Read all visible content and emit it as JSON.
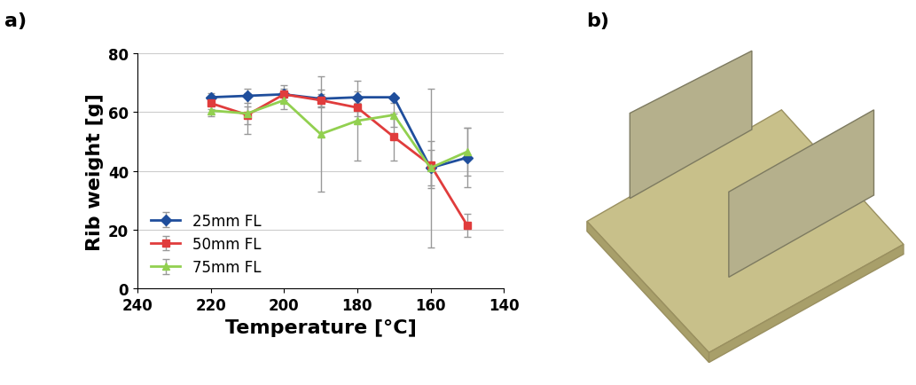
{
  "panel_labels": [
    "a)",
    "b)"
  ],
  "chart_data": {
    "type": "line",
    "x_label": "Temperature [°C]",
    "y_label": "Rib weight [g]",
    "x": [
      220,
      210,
      200,
      190,
      180,
      170,
      160,
      150
    ],
    "xlim": [
      240,
      140
    ],
    "xticks": [
      240,
      220,
      200,
      180,
      160,
      140
    ],
    "ylim": [
      0,
      80
    ],
    "yticks": [
      0,
      20,
      40,
      60,
      80
    ],
    "grid": true,
    "legend": "lower left",
    "series": [
      {
        "name": "25mm FL",
        "color": "#1f4e9c",
        "marker": "diamond",
        "line_style": "solid",
        "values": [
          65,
          65.5,
          66,
          64.5,
          65,
          65,
          41,
          44.5
        ],
        "error": [
          1.5,
          2.5,
          2,
          3,
          2,
          0.5,
          6,
          10
        ]
      },
      {
        "name": "50mm FL",
        "color": "#e03c3c",
        "marker": "square",
        "line_style": "solid",
        "values": [
          63,
          59,
          66,
          64,
          61.5,
          51.5,
          42,
          21.5
        ],
        "error": [
          2,
          3,
          3,
          2,
          3,
          8,
          8,
          4
        ]
      },
      {
        "name": "75mm FL",
        "color": "#92d050",
        "marker": "triangle",
        "line_style": "solid",
        "values": [
          60.5,
          59.5,
          64,
          52.5,
          57,
          59,
          41,
          46.5
        ],
        "error": [
          2,
          7,
          3,
          19.5,
          13.5,
          4,
          27,
          8
        ]
      }
    ]
  }
}
